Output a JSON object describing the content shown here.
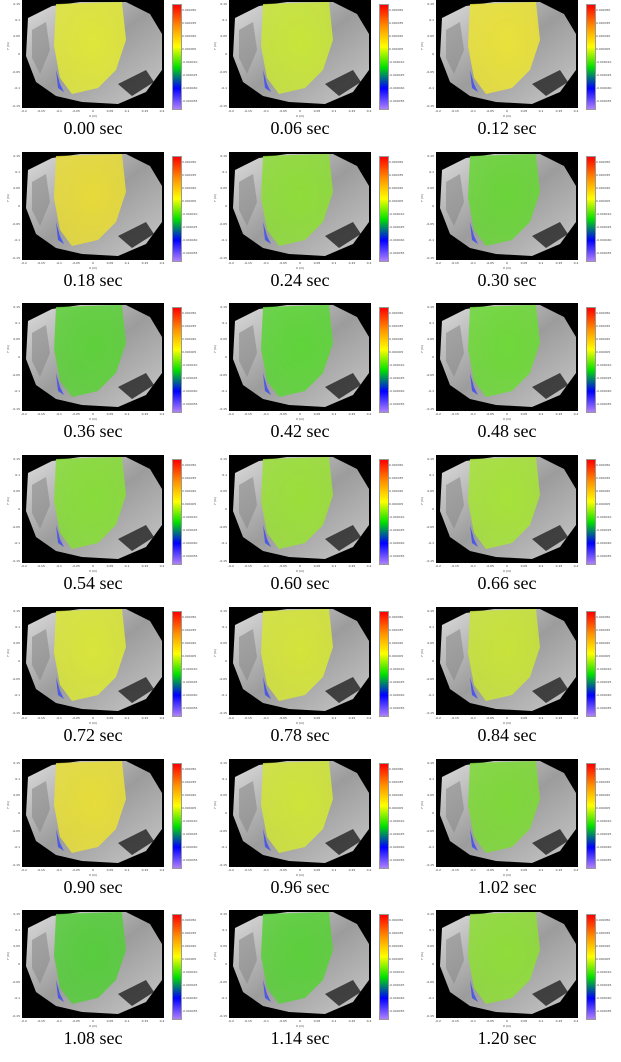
{
  "axes": {
    "x_label": "X (m)",
    "y_label": "Y (m)",
    "x_ticks": [
      "-0.2",
      "-0.15",
      "-0.1",
      "-0.05",
      "0",
      "0.05",
      "0.1",
      "0.15",
      "0.2"
    ],
    "y_ticks": [
      "0.15",
      "0.1",
      "0.05",
      "0",
      "-0.05",
      "-0.1",
      "-0.15"
    ],
    "colorbar_ticks": [
      "0.000050",
      "0.000035",
      "0.000020",
      "0.000005",
      "-0.000010",
      "-0.000025",
      "-0.000040",
      "-0.000055"
    ]
  },
  "colors": {
    "background": "#000000",
    "anatomy": "#b9b9b9",
    "colormap": [
      "#ff0000",
      "#ff8c00",
      "#ffff00",
      "#00e000",
      "#0000ff",
      "#b080ff"
    ]
  },
  "frames": [
    {
      "caption": "0.00 sec",
      "tint": "#dfe63a"
    },
    {
      "caption": "0.06 sec",
      "tint": "#c8e53a"
    },
    {
      "caption": "0.12 sec",
      "tint": "#e9e13a"
    },
    {
      "caption": "0.18 sec",
      "tint": "#e6da3a"
    },
    {
      "caption": "0.24 sec",
      "tint": "#8fdc3a"
    },
    {
      "caption": "0.30 sec",
      "tint": "#6bd43a"
    },
    {
      "caption": "0.36 sec",
      "tint": "#5fd03c"
    },
    {
      "caption": "0.42 sec",
      "tint": "#5fd43a"
    },
    {
      "caption": "0.48 sec",
      "tint": "#6fd83a"
    },
    {
      "caption": "0.54 sec",
      "tint": "#88dc3a"
    },
    {
      "caption": "0.60 sec",
      "tint": "#9bdf3a"
    },
    {
      "caption": "0.66 sec",
      "tint": "#a6e23a"
    },
    {
      "caption": "0.72 sec",
      "tint": "#d8e53a"
    },
    {
      "caption": "0.78 sec",
      "tint": "#d4e43a"
    },
    {
      "caption": "0.84 sec",
      "tint": "#c8e33a"
    },
    {
      "caption": "0.90 sec",
      "tint": "#e6dd3a"
    },
    {
      "caption": "0.96 sec",
      "tint": "#cfe43a"
    },
    {
      "caption": "1.02 sec",
      "tint": "#7fd83a"
    },
    {
      "caption": "1.08 sec",
      "tint": "#58cc3e"
    },
    {
      "caption": "1.14 sec",
      "tint": "#5ccf3c"
    },
    {
      "caption": "1.20 sec",
      "tint": "#8fdc3a"
    }
  ]
}
